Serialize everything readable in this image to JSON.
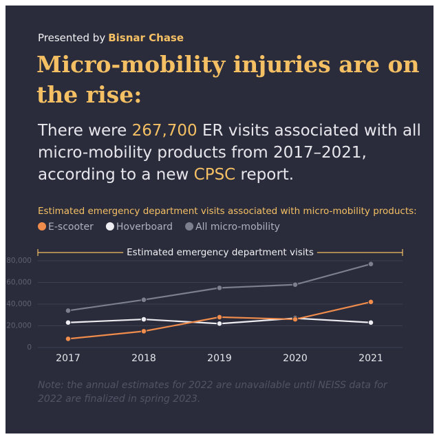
{
  "header": {
    "presented_by": "Presented by",
    "brand": "Bisnar Chase",
    "headline": "Micro-mobility injuries are on the rise:",
    "lede": [
      "There were ",
      "267,700",
      " ER visits associated with all micro-mobility products from 2017–2021, according to a new ",
      "CPSC",
      " report."
    ]
  },
  "chart_data": {
    "type": "line",
    "title": "Estimated emergency department visits associated with micro-mobility products:",
    "y_label": "Estimated emergency department visits",
    "categories": [
      "2017",
      "2018",
      "2019",
      "2020",
      "2021"
    ],
    "series": [
      {
        "name": "E-scooter",
        "color": "#f08c4c",
        "values": [
          8000,
          15000,
          28000,
          26000,
          42000
        ]
      },
      {
        "name": "Hoverboard",
        "color": "#eeeef2",
        "values": [
          23000,
          26000,
          22000,
          27000,
          23000
        ]
      },
      {
        "name": "All micro-mobility",
        "color": "#7c7f8e",
        "values": [
          34000,
          44000,
          55000,
          58000,
          77000
        ]
      }
    ],
    "ylim": [
      0,
      80000
    ],
    "yticks": [
      0,
      {
        "value": 20000,
        "label": "20,000"
      },
      {
        "value": 40000,
        "label": "40,000"
      },
      {
        "value": 60000,
        "label": "60,000"
      },
      {
        "value": 80000,
        "label": "80,000"
      }
    ],
    "grid": true,
    "note": "Note: the annual estimates for 2022 are unavailable until NEISS data for 2022 are finalized in spring 2023."
  }
}
